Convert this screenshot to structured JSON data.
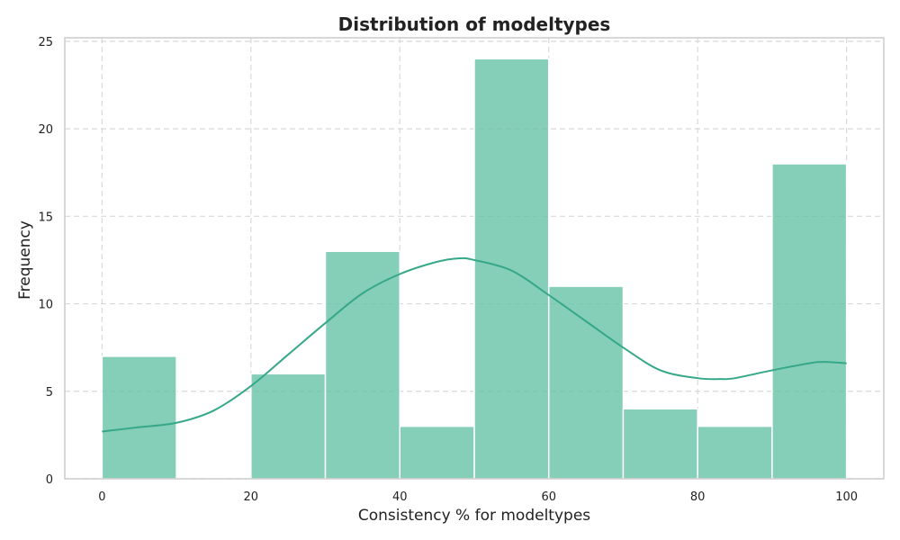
{
  "chart_data": {
    "type": "bar",
    "subtype": "histogram",
    "title": "Distribution of modeltypes",
    "xlabel": "Consistency % for modeltypes",
    "ylabel": "Frequency",
    "xlim": [
      -5,
      105
    ],
    "ylim": [
      0,
      25.2
    ],
    "xticks": [
      0,
      20,
      40,
      60,
      80,
      100
    ],
    "yticks": [
      0,
      5,
      10,
      15,
      20,
      25
    ],
    "bins": [
      {
        "start": 0,
        "end": 10,
        "count": 7
      },
      {
        "start": 10,
        "end": 20,
        "count": 0
      },
      {
        "start": 20,
        "end": 30,
        "count": 6
      },
      {
        "start": 30,
        "end": 40,
        "count": 13
      },
      {
        "start": 40,
        "end": 50,
        "count": 3
      },
      {
        "start": 50,
        "end": 60,
        "count": 24
      },
      {
        "start": 60,
        "end": 70,
        "count": 11
      },
      {
        "start": 70,
        "end": 80,
        "count": 4
      },
      {
        "start": 80,
        "end": 90,
        "count": 3
      },
      {
        "start": 90,
        "end": 100,
        "count": 18
      }
    ],
    "kde": {
      "x": [
        0,
        5,
        10,
        15,
        20,
        25,
        30,
        35,
        40,
        45,
        48,
        50,
        55,
        60,
        65,
        70,
        75,
        80,
        83,
        85,
        90,
        95,
        97,
        100
      ],
      "y": [
        2.7,
        2.95,
        3.2,
        3.9,
        5.3,
        7.1,
        8.9,
        10.6,
        11.7,
        12.4,
        12.6,
        12.5,
        11.9,
        10.5,
        9.0,
        7.5,
        6.2,
        5.75,
        5.7,
        5.75,
        6.2,
        6.6,
        6.68,
        6.6
      ]
    },
    "grid": true,
    "colors": {
      "bar_fill": "#66c2a5",
      "bar_opacity": 0.8,
      "bar_edge": "#ffffff",
      "kde_line": "#36a889",
      "grid": "#d9d9d9",
      "frame": "#cccccc"
    }
  }
}
